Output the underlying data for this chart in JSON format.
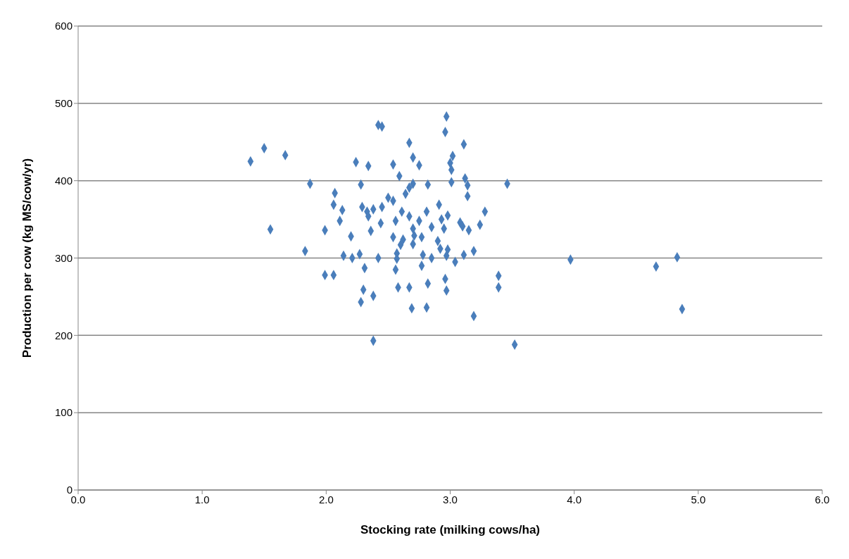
{
  "chart_data": {
    "type": "scatter",
    "xlabel": "Stocking rate (milking cows/ha)",
    "ylabel": "Production per cow (kg MS/cow/yr)",
    "xlim": [
      0,
      6
    ],
    "xticks": [
      {
        "value": 0,
        "label": "0.0"
      },
      {
        "value": 1,
        "label": "1.0"
      },
      {
        "value": 2,
        "label": "2.0"
      },
      {
        "value": 3,
        "label": "3.0"
      },
      {
        "value": 4,
        "label": "4.0"
      },
      {
        "value": 5,
        "label": "5.0"
      },
      {
        "value": 6,
        "label": "6.0"
      }
    ],
    "ylim": [
      0,
      600
    ],
    "yticks": [
      0,
      100,
      200,
      300,
      400,
      500,
      600
    ],
    "grid": "y",
    "legend": false,
    "marker": "diamond",
    "series": [
      {
        "color": "#4a7ebb",
        "x": [
          1.39,
          1.5,
          1.67,
          1.55,
          1.83,
          1.87,
          1.99,
          1.99,
          2.06,
          2.06,
          2.07,
          2.11,
          2.13,
          2.14,
          2.2,
          2.21,
          2.24,
          2.27,
          2.28,
          2.28,
          2.29,
          2.3,
          2.31,
          2.33,
          2.34,
          2.34,
          2.36,
          2.38,
          2.38,
          2.38,
          2.42,
          2.42,
          2.45,
          2.44,
          2.45,
          2.5,
          2.54,
          2.54,
          2.54,
          2.56,
          2.56,
          2.57,
          2.57,
          2.58,
          2.59,
          2.6,
          2.61,
          2.62,
          2.64,
          2.67,
          2.67,
          2.67,
          2.67,
          2.69,
          2.7,
          2.7,
          2.7,
          2.71,
          2.7,
          2.75,
          2.75,
          2.77,
          2.78,
          2.77,
          2.81,
          2.82,
          2.82,
          2.81,
          2.85,
          2.85,
          2.9,
          2.91,
          2.92,
          2.93,
          2.95,
          2.96,
          2.97,
          2.96,
          2.97,
          2.97,
          2.98,
          2.98,
          3.0,
          3.01,
          3.01,
          3.02,
          3.04,
          3.08,
          3.1,
          3.11,
          3.11,
          3.12,
          3.14,
          3.14,
          3.15,
          3.19,
          3.19,
          3.24,
          3.28,
          3.39,
          3.39,
          3.46,
          3.52,
          3.97,
          4.66,
          4.83,
          4.87
        ],
        "values": [
          425,
          442,
          433,
          337,
          309,
          396,
          336,
          278,
          278,
          369,
          384,
          348,
          362,
          303,
          328,
          300,
          424,
          305,
          395,
          243,
          366,
          259,
          287,
          360,
          354,
          419,
          335,
          193,
          251,
          363,
          300,
          472,
          470,
          345,
          366,
          378,
          374,
          421,
          327,
          348,
          285,
          306,
          299,
          262,
          406,
          317,
          360,
          324,
          383,
          391,
          354,
          449,
          262,
          235,
          430,
          396,
          338,
          329,
          318,
          420,
          348,
          327,
          304,
          290,
          360,
          395,
          267,
          236,
          340,
          300,
          322,
          369,
          312,
          350,
          338,
          463,
          483,
          273,
          258,
          303,
          355,
          311,
          423,
          414,
          398,
          432,
          295,
          346,
          341,
          447,
          304,
          403,
          394,
          380,
          336,
          309,
          225,
          343,
          360,
          277,
          262,
          396,
          188,
          298,
          289,
          301,
          234
        ]
      }
    ]
  }
}
